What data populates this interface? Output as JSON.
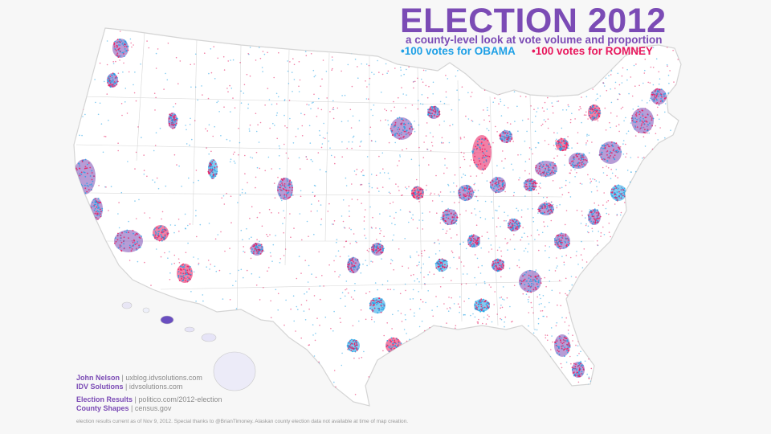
{
  "title": "ELECTION 2012",
  "subtitle": "a county-level look at vote volume and proportion",
  "legend": {
    "obama": "•100 votes for OBAMA",
    "romney": "•100 votes for ROMNEY"
  },
  "colors": {
    "obama": "#1ea0e6",
    "romney": "#e8175d",
    "mixed": "#7b4bb5",
    "background": "#f7f7f7",
    "land": "#ffffff",
    "border": "#d0d0d0"
  },
  "credits": {
    "author_name": "John Nelson",
    "author_site": "uxblog.idvsolutions.com",
    "org_name": "IDV Solutions",
    "org_site": "idvsolutions.com",
    "results_label": "Election Results",
    "results_source": "politico.com/2012-election",
    "shapes_label": "County Shapes",
    "shapes_source": "census.gov",
    "separator": " | "
  },
  "footnote": "election results current as of Nov 9, 2012. Special thanks to @BrianTimoney.  Alaskan county election data not available at time of map creation."
}
